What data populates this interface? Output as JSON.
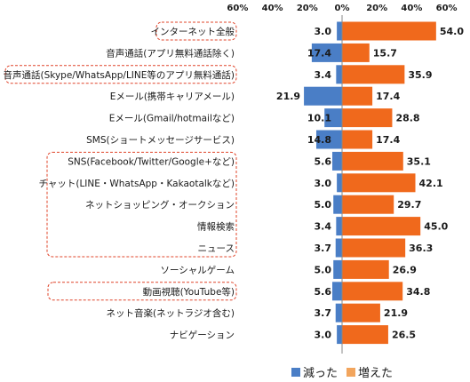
{
  "chart_data": {
    "type": "bar",
    "orientation": "horizontal-diverging",
    "categories": [
      "インターネット全般",
      "音声通話(アプリ無料通話除く)",
      "音声通話(Skype/WhatsApp/LINE等のアプリ無料通話)",
      "Eメール(携帯キャリアメール)",
      "Eメール(Gmail/hotmailなど)",
      "SMS(ショートメッセージサービス)",
      "SNS(Facebook/Twitter/Google+など)",
      "チャット(LINE・WhatsApp・Kakaotalkなど)",
      "ネットショッピング・オークション",
      "情報検索",
      "ニュース",
      "ソーシャルゲーム",
      "動画視聴(YouTube等)",
      "ネット音楽(ネットラジオ含む)",
      "ナビゲーション"
    ],
    "series": [
      {
        "name": "減った",
        "color": "#4a7ec6",
        "values": [
          3.0,
          17.4,
          3.4,
          21.9,
          10.1,
          14.8,
          5.6,
          3.0,
          5.0,
          3.4,
          3.7,
          5.0,
          5.6,
          3.7,
          3.0
        ]
      },
      {
        "name": "増えた",
        "color": "#f0691c",
        "values": [
          54.0,
          15.7,
          35.9,
          17.4,
          28.8,
          17.4,
          35.1,
          42.1,
          29.7,
          45.0,
          36.3,
          26.9,
          34.8,
          21.9,
          26.5
        ]
      }
    ],
    "value_labels": {
      "decreased": [
        "3.0",
        "17.4",
        "3.4",
        "21.9",
        "10.1",
        "14.8",
        "5.6",
        "3.0",
        "5.0",
        "3.4",
        "3.7",
        "5.0",
        "5.6",
        "3.7",
        "3.0"
      ],
      "increased": [
        "54.0",
        "15.7",
        "35.9",
        "17.4",
        "28.8",
        "17.4",
        "35.1",
        "42.1",
        "29.7",
        "45.0",
        "36.3",
        "26.9",
        "34.8",
        "21.9",
        "26.5"
      ]
    },
    "x_ticks": [
      "60%",
      "40%",
      "20%",
      "0%",
      "20%",
      "40%",
      "60%"
    ],
    "xlim": [
      -60,
      60
    ],
    "legend": [
      "減った",
      "増えた"
    ],
    "legend_position": "bottom",
    "highlight_boxes": [
      [
        0,
        0
      ],
      [
        2,
        2
      ],
      [
        6,
        10
      ],
      [
        12,
        12
      ]
    ],
    "grid": false
  }
}
